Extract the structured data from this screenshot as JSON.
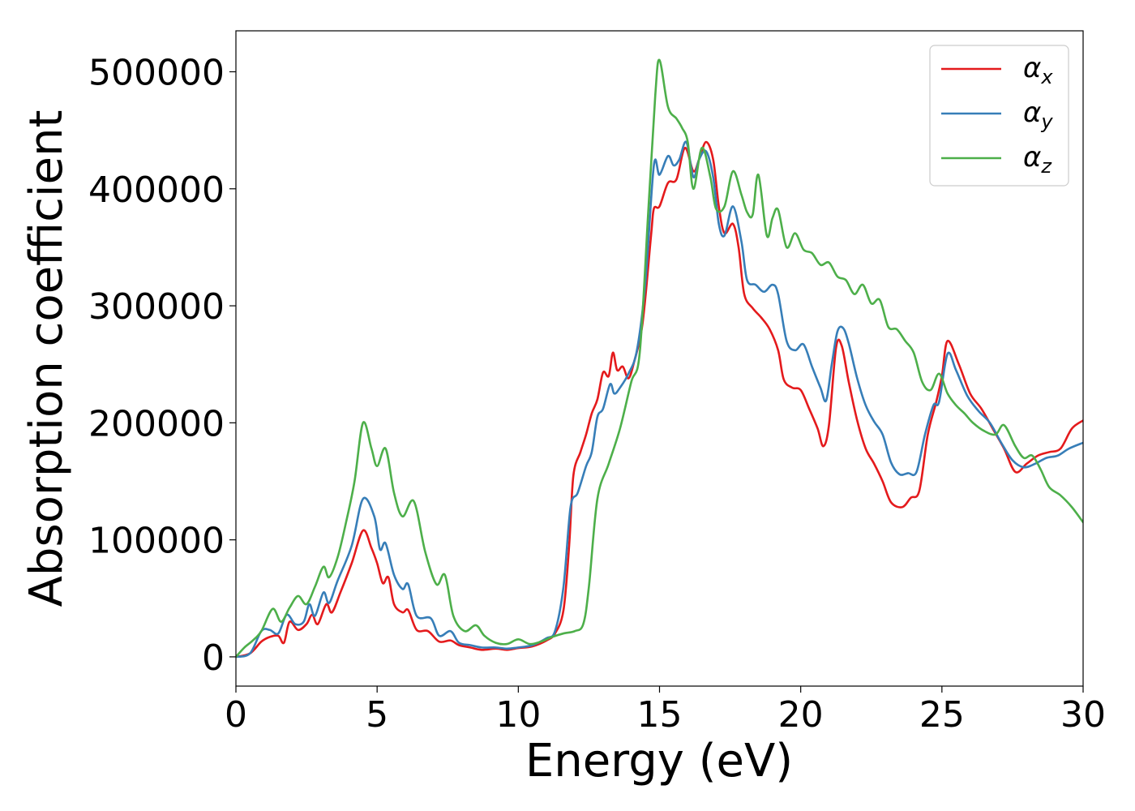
{
  "chart_data": {
    "type": "line",
    "title": "",
    "xlabel": "Energy (eV)",
    "ylabel": "Absorption coefficient",
    "xlim": [
      0,
      30
    ],
    "ylim": [
      -25000,
      535000
    ],
    "xticks": [
      0,
      5,
      10,
      15,
      20,
      25,
      30
    ],
    "yticks": [
      0,
      100000,
      200000,
      300000,
      400000,
      500000
    ],
    "grid": false,
    "legend_position": "top-right",
    "series": [
      {
        "name": "αx",
        "base": "α",
        "sub": "x",
        "color": "#e41a1c",
        "points": [
          [
            0,
            0
          ],
          [
            0.5,
            3000
          ],
          [
            0.9,
            13000
          ],
          [
            1.2,
            17000
          ],
          [
            1.5,
            18000
          ],
          [
            1.7,
            12000
          ],
          [
            1.9,
            30000
          ],
          [
            2.2,
            23000
          ],
          [
            2.5,
            28000
          ],
          [
            2.7,
            36000
          ],
          [
            2.9,
            28000
          ],
          [
            3.2,
            45000
          ],
          [
            3.4,
            38000
          ],
          [
            3.7,
            55000
          ],
          [
            4.1,
            80000
          ],
          [
            4.5,
            108000
          ],
          [
            4.8,
            93000
          ],
          [
            5.0,
            80000
          ],
          [
            5.2,
            63000
          ],
          [
            5.4,
            68000
          ],
          [
            5.6,
            45000
          ],
          [
            5.9,
            38000
          ],
          [
            6.1,
            40000
          ],
          [
            6.4,
            23000
          ],
          [
            6.8,
            22000
          ],
          [
            7.2,
            13000
          ],
          [
            7.6,
            14000
          ],
          [
            7.9,
            10000
          ],
          [
            8.3,
            8000
          ],
          [
            8.7,
            6000
          ],
          [
            9.2,
            7000
          ],
          [
            9.6,
            6000
          ],
          [
            10.0,
            7500
          ],
          [
            10.5,
            9000
          ],
          [
            11.0,
            14000
          ],
          [
            11.3,
            20000
          ],
          [
            11.6,
            40000
          ],
          [
            11.8,
            95000
          ],
          [
            11.95,
            155000
          ],
          [
            12.2,
            175000
          ],
          [
            12.4,
            190000
          ],
          [
            12.6,
            208000
          ],
          [
            12.8,
            220000
          ],
          [
            13.0,
            243000
          ],
          [
            13.2,
            240000
          ],
          [
            13.35,
            260000
          ],
          [
            13.5,
            245000
          ],
          [
            13.7,
            248000
          ],
          [
            13.9,
            238000
          ],
          [
            14.1,
            252000
          ],
          [
            14.4,
            285000
          ],
          [
            14.7,
            360000
          ],
          [
            14.8,
            383000
          ],
          [
            15.0,
            385000
          ],
          [
            15.3,
            405000
          ],
          [
            15.6,
            408000
          ],
          [
            15.9,
            435000
          ],
          [
            16.2,
            415000
          ],
          [
            16.4,
            425000
          ],
          [
            16.65,
            440000
          ],
          [
            16.9,
            425000
          ],
          [
            17.1,
            385000
          ],
          [
            17.3,
            362000
          ],
          [
            17.6,
            370000
          ],
          [
            17.8,
            350000
          ],
          [
            18.0,
            310000
          ],
          [
            18.3,
            298000
          ],
          [
            18.6,
            290000
          ],
          [
            18.9,
            280000
          ],
          [
            19.2,
            262000
          ],
          [
            19.4,
            237000
          ],
          [
            19.7,
            230000
          ],
          [
            20.0,
            228000
          ],
          [
            20.3,
            212000
          ],
          [
            20.6,
            195000
          ],
          [
            20.8,
            180000
          ],
          [
            21.0,
            198000
          ],
          [
            21.25,
            264000
          ],
          [
            21.45,
            266000
          ],
          [
            21.7,
            235000
          ],
          [
            22.0,
            202000
          ],
          [
            22.3,
            178000
          ],
          [
            22.6,
            165000
          ],
          [
            22.9,
            150000
          ],
          [
            23.2,
            132000
          ],
          [
            23.6,
            128000
          ],
          [
            23.9,
            136000
          ],
          [
            24.2,
            142000
          ],
          [
            24.5,
            190000
          ],
          [
            24.8,
            218000
          ],
          [
            25.0,
            240000
          ],
          [
            25.2,
            270000
          ],
          [
            25.6,
            250000
          ],
          [
            26.0,
            225000
          ],
          [
            26.4,
            212000
          ],
          [
            26.8,
            195000
          ],
          [
            27.2,
            178000
          ],
          [
            27.6,
            158000
          ],
          [
            28.0,
            165000
          ],
          [
            28.4,
            172000
          ],
          [
            28.8,
            175000
          ],
          [
            29.2,
            178000
          ],
          [
            29.6,
            195000
          ],
          [
            30.0,
            202000
          ]
        ]
      },
      {
        "name": "αy",
        "base": "α",
        "sub": "y",
        "color": "#377eb8",
        "points": [
          [
            0,
            0
          ],
          [
            0.5,
            3000
          ],
          [
            0.9,
            22000
          ],
          [
            1.2,
            23000
          ],
          [
            1.5,
            20000
          ],
          [
            1.8,
            36000
          ],
          [
            2.1,
            28000
          ],
          [
            2.4,
            30000
          ],
          [
            2.6,
            45000
          ],
          [
            2.8,
            35000
          ],
          [
            3.1,
            55000
          ],
          [
            3.3,
            46000
          ],
          [
            3.6,
            65000
          ],
          [
            4.1,
            95000
          ],
          [
            4.5,
            135000
          ],
          [
            4.9,
            120000
          ],
          [
            5.1,
            92000
          ],
          [
            5.3,
            97000
          ],
          [
            5.6,
            70000
          ],
          [
            5.9,
            58000
          ],
          [
            6.1,
            62000
          ],
          [
            6.4,
            35000
          ],
          [
            6.9,
            33000
          ],
          [
            7.2,
            18000
          ],
          [
            7.6,
            22000
          ],
          [
            7.9,
            12000
          ],
          [
            8.3,
            10000
          ],
          [
            8.7,
            8000
          ],
          [
            9.2,
            8000
          ],
          [
            9.6,
            7000
          ],
          [
            10.0,
            8000
          ],
          [
            10.5,
            10000
          ],
          [
            11.0,
            16000
          ],
          [
            11.3,
            22000
          ],
          [
            11.6,
            60000
          ],
          [
            11.85,
            128000
          ],
          [
            12.1,
            140000
          ],
          [
            12.4,
            163000
          ],
          [
            12.6,
            175000
          ],
          [
            12.8,
            205000
          ],
          [
            13.0,
            212000
          ],
          [
            13.25,
            233000
          ],
          [
            13.4,
            225000
          ],
          [
            13.6,
            230000
          ],
          [
            13.9,
            242000
          ],
          [
            14.2,
            262000
          ],
          [
            14.5,
            320000
          ],
          [
            14.8,
            420000
          ],
          [
            15.0,
            412000
          ],
          [
            15.3,
            428000
          ],
          [
            15.5,
            420000
          ],
          [
            15.7,
            425000
          ],
          [
            15.95,
            440000
          ],
          [
            16.2,
            410000
          ],
          [
            16.4,
            425000
          ],
          [
            16.65,
            432000
          ],
          [
            16.9,
            410000
          ],
          [
            17.1,
            370000
          ],
          [
            17.3,
            360000
          ],
          [
            17.6,
            385000
          ],
          [
            17.9,
            355000
          ],
          [
            18.1,
            322000
          ],
          [
            18.4,
            318000
          ],
          [
            18.7,
            312000
          ],
          [
            19.0,
            318000
          ],
          [
            19.2,
            310000
          ],
          [
            19.5,
            270000
          ],
          [
            19.8,
            262000
          ],
          [
            20.1,
            267000
          ],
          [
            20.4,
            248000
          ],
          [
            20.7,
            230000
          ],
          [
            20.9,
            219000
          ],
          [
            21.1,
            250000
          ],
          [
            21.3,
            278000
          ],
          [
            21.5,
            281000
          ],
          [
            21.7,
            268000
          ],
          [
            22.0,
            238000
          ],
          [
            22.3,
            215000
          ],
          [
            22.6,
            201000
          ],
          [
            22.9,
            190000
          ],
          [
            23.2,
            166000
          ],
          [
            23.5,
            156000
          ],
          [
            23.8,
            157000
          ],
          [
            24.1,
            158000
          ],
          [
            24.4,
            190000
          ],
          [
            24.7,
            215000
          ],
          [
            24.9,
            218000
          ],
          [
            25.2,
            259000
          ],
          [
            25.5,
            245000
          ],
          [
            25.9,
            223000
          ],
          [
            26.3,
            210000
          ],
          [
            26.7,
            200000
          ],
          [
            27.1,
            183000
          ],
          [
            27.5,
            168000
          ],
          [
            27.9,
            162000
          ],
          [
            28.3,
            165000
          ],
          [
            28.7,
            170000
          ],
          [
            29.1,
            172000
          ],
          [
            29.5,
            178000
          ],
          [
            30.0,
            183000
          ]
        ]
      },
      {
        "name": "αz",
        "base": "α",
        "sub": "z",
        "color": "#4daf4a",
        "points": [
          [
            0,
            0
          ],
          [
            0.3,
            8000
          ],
          [
            0.6,
            14000
          ],
          [
            0.9,
            22000
          ],
          [
            1.3,
            41000
          ],
          [
            1.6,
            30000
          ],
          [
            1.9,
            42000
          ],
          [
            2.2,
            52000
          ],
          [
            2.5,
            45000
          ],
          [
            2.8,
            60000
          ],
          [
            3.1,
            77000
          ],
          [
            3.3,
            68000
          ],
          [
            3.6,
            85000
          ],
          [
            3.9,
            115000
          ],
          [
            4.2,
            150000
          ],
          [
            4.5,
            200000
          ],
          [
            4.8,
            178000
          ],
          [
            5.0,
            163000
          ],
          [
            5.3,
            178000
          ],
          [
            5.6,
            140000
          ],
          [
            5.9,
            120000
          ],
          [
            6.3,
            133000
          ],
          [
            6.7,
            90000
          ],
          [
            7.1,
            62000
          ],
          [
            7.4,
            70000
          ],
          [
            7.7,
            35000
          ],
          [
            8.1,
            22000
          ],
          [
            8.5,
            27000
          ],
          [
            8.8,
            18000
          ],
          [
            9.2,
            12000
          ],
          [
            9.6,
            11000
          ],
          [
            10.0,
            15000
          ],
          [
            10.4,
            11000
          ],
          [
            10.8,
            13000
          ],
          [
            11.2,
            17000
          ],
          [
            11.6,
            20000
          ],
          [
            12.0,
            22000
          ],
          [
            12.3,
            28000
          ],
          [
            12.5,
            60000
          ],
          [
            12.8,
            135000
          ],
          [
            13.2,
            165000
          ],
          [
            13.6,
            195000
          ],
          [
            14.0,
            235000
          ],
          [
            14.3,
            260000
          ],
          [
            14.6,
            380000
          ],
          [
            14.85,
            480000
          ],
          [
            15.0,
            510000
          ],
          [
            15.3,
            470000
          ],
          [
            15.6,
            460000
          ],
          [
            15.8,
            452000
          ],
          [
            16.0,
            440000
          ],
          [
            16.2,
            400000
          ],
          [
            16.5,
            435000
          ],
          [
            16.8,
            410000
          ],
          [
            17.0,
            383000
          ],
          [
            17.3,
            385000
          ],
          [
            17.6,
            415000
          ],
          [
            17.9,
            395000
          ],
          [
            18.1,
            380000
          ],
          [
            18.3,
            378000
          ],
          [
            18.5,
            412000
          ],
          [
            18.8,
            360000
          ],
          [
            19.0,
            375000
          ],
          [
            19.2,
            382000
          ],
          [
            19.5,
            350000
          ],
          [
            19.8,
            362000
          ],
          [
            20.1,
            348000
          ],
          [
            20.4,
            345000
          ],
          [
            20.7,
            335000
          ],
          [
            21.0,
            337000
          ],
          [
            21.3,
            325000
          ],
          [
            21.6,
            322000
          ],
          [
            21.9,
            310000
          ],
          [
            22.2,
            318000
          ],
          [
            22.5,
            302000
          ],
          [
            22.8,
            305000
          ],
          [
            23.1,
            282000
          ],
          [
            23.4,
            280000
          ],
          [
            23.7,
            270000
          ],
          [
            24.0,
            260000
          ],
          [
            24.3,
            235000
          ],
          [
            24.6,
            228000
          ],
          [
            24.9,
            242000
          ],
          [
            25.2,
            225000
          ],
          [
            25.5,
            215000
          ],
          [
            25.8,
            208000
          ],
          [
            26.1,
            200000
          ],
          [
            26.5,
            193000
          ],
          [
            26.9,
            190000
          ],
          [
            27.2,
            198000
          ],
          [
            27.6,
            180000
          ],
          [
            27.9,
            170000
          ],
          [
            28.2,
            172000
          ],
          [
            28.5,
            160000
          ],
          [
            28.8,
            145000
          ],
          [
            29.2,
            138000
          ],
          [
            29.6,
            128000
          ],
          [
            30.0,
            115000
          ]
        ]
      }
    ]
  }
}
